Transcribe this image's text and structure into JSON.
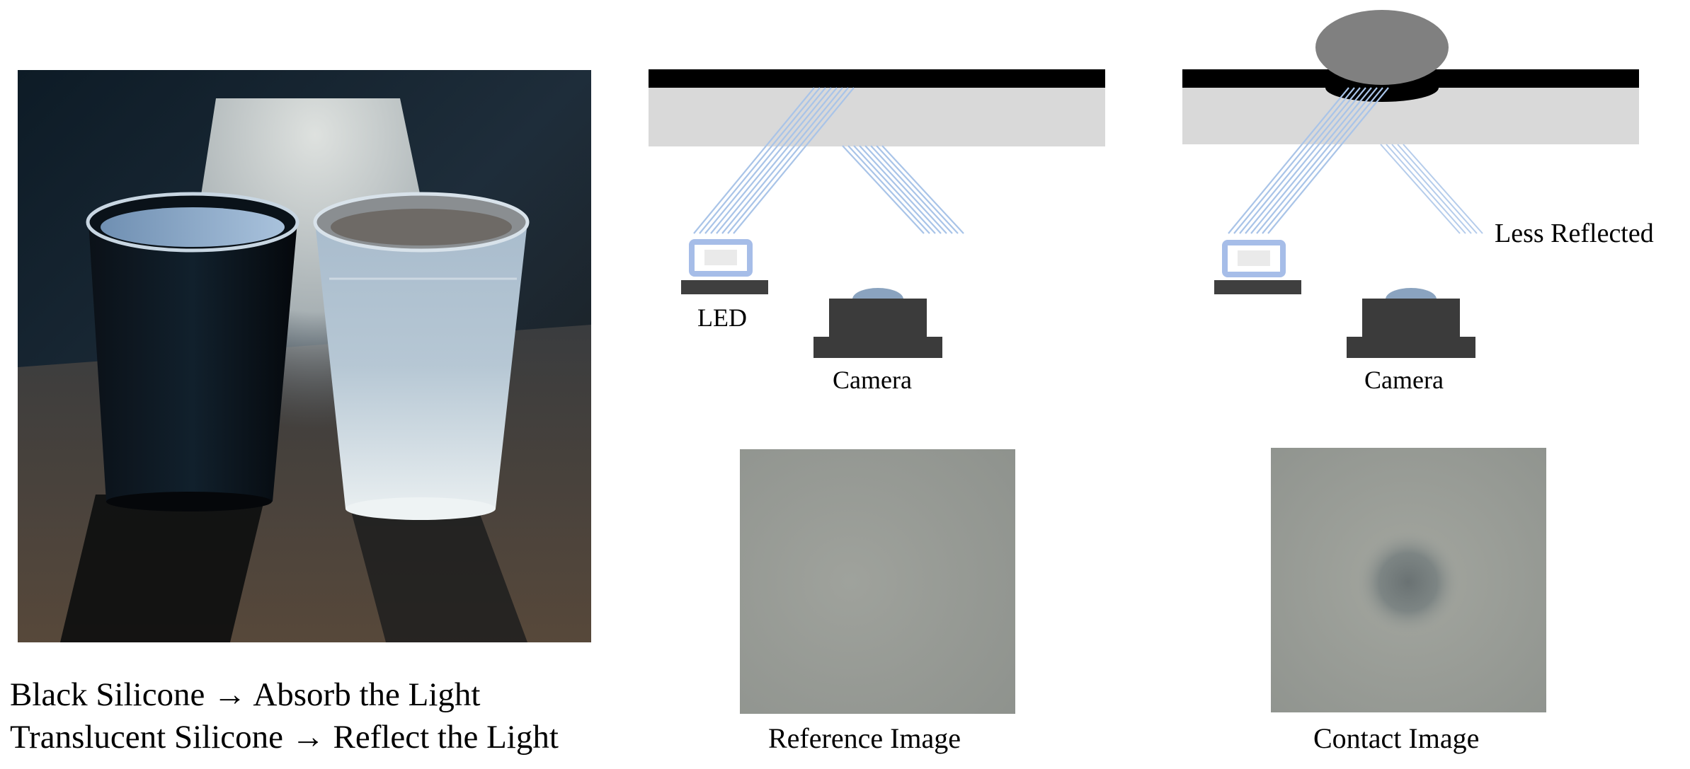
{
  "photo": {
    "caption_line1": "Black Silicone → Absorb the Light",
    "caption_line2": "Translucent Silicone → Reflect the Light"
  },
  "left_diagram": {
    "led_label": "LED",
    "camera_label": "Camera",
    "image_caption": "Reference Image"
  },
  "right_diagram": {
    "reflect_label": "Less Reflected",
    "camera_label": "Camera",
    "image_caption": "Contact Image"
  },
  "colors": {
    "black_layer": "#000000",
    "gel_layer": "#d9d9d9",
    "light_ray": "#a9c4e8",
    "led_body": "#3f3f3f",
    "camera_body": "#3b3b3b",
    "camera_lens": "#8aa3bf",
    "indenter": "#808080"
  }
}
